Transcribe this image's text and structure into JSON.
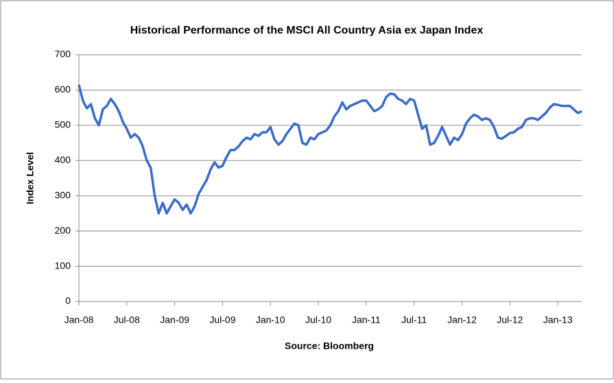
{
  "chart_data": {
    "type": "line",
    "title": "Historical Performance of the MSCI All Country Asia ex Japan Index",
    "y_label": "Index Level",
    "x_label": "Source: Bloomberg",
    "categories": [
      "Jan-08",
      null,
      null,
      null,
      null,
      null,
      null,
      null,
      null,
      null,
      null,
      null,
      "Jul-08",
      null,
      null,
      null,
      null,
      null,
      null,
      null,
      null,
      null,
      null,
      null,
      "Jan-09",
      null,
      null,
      null,
      null,
      null,
      null,
      null,
      null,
      null,
      null,
      null,
      "Jul-09",
      null,
      null,
      null,
      null,
      null,
      null,
      null,
      null,
      null,
      null,
      null,
      "Jan-10",
      null,
      null,
      null,
      null,
      null,
      null,
      null,
      null,
      null,
      null,
      null,
      "Jul-10",
      null,
      null,
      null,
      null,
      null,
      null,
      null,
      null,
      null,
      null,
      null,
      "Jan-11",
      null,
      null,
      null,
      null,
      null,
      null,
      null,
      null,
      null,
      null,
      null,
      "Jul-11",
      null,
      null,
      null,
      null,
      null,
      null,
      null,
      null,
      null,
      null,
      null,
      "Jan-12",
      null,
      null,
      null,
      null,
      null,
      null,
      null,
      null,
      null,
      null,
      null,
      "Jul-12",
      null,
      null,
      null,
      null,
      null,
      null,
      null,
      null,
      null,
      null,
      null,
      "Jan-13",
      null,
      null,
      null,
      null,
      null,
      null
    ],
    "series": [
      {
        "color": "#3a6bc8",
        "values": [
          615,
          570,
          548,
          560,
          520,
          500,
          545,
          555,
          575,
          560,
          540,
          510,
          490,
          465,
          475,
          465,
          440,
          400,
          380,
          300,
          250,
          280,
          250,
          270,
          290,
          280,
          260,
          275,
          250,
          270,
          305,
          325,
          345,
          375,
          395,
          380,
          385,
          410,
          430,
          430,
          440,
          455,
          465,
          460,
          475,
          470,
          480,
          480,
          495,
          460,
          445,
          455,
          475,
          490,
          505,
          500,
          450,
          445,
          465,
          460,
          475,
          480,
          485,
          500,
          525,
          540,
          565,
          545,
          555,
          560,
          565,
          570,
          570,
          555,
          540,
          545,
          555,
          580,
          590,
          588,
          575,
          570,
          560,
          575,
          570,
          530,
          490,
          500,
          445,
          450,
          470,
          495,
          470,
          445,
          465,
          458,
          475,
          505,
          520,
          530,
          525,
          515,
          520,
          515,
          495,
          465,
          462,
          470,
          478,
          480,
          490,
          495,
          515,
          520,
          520,
          515,
          525,
          535,
          550,
          560,
          558,
          555,
          555,
          555,
          545,
          535,
          540
        ]
      }
    ],
    "ylim": [
      0,
      700
    ],
    "yticks": [
      0,
      100,
      200,
      300,
      400,
      500,
      600,
      700
    ],
    "grid": true
  }
}
